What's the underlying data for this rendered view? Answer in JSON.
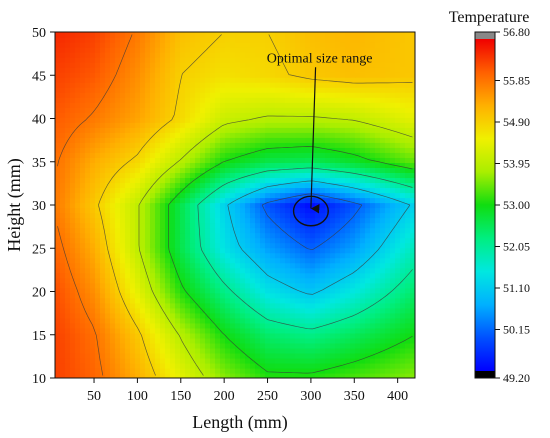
{
  "chart_data": {
    "type": "heatmap",
    "title": "",
    "xlabel": "Length (mm)",
    "ylabel": "Height (mm)",
    "xlim": [
      5,
      420
    ],
    "ylim": [
      10,
      50
    ],
    "x_ticks": [
      50,
      100,
      150,
      200,
      250,
      300,
      350,
      400
    ],
    "y_ticks": [
      10,
      15,
      20,
      25,
      30,
      35,
      40,
      45,
      50
    ],
    "colorbar": {
      "label": "Temperature",
      "min": 49.2,
      "max": 56.8,
      "ticks": [
        "56.80",
        "55.85",
        "54.90",
        "53.95",
        "53.00",
        "52.05",
        "51.10",
        "50.15",
        "49.20"
      ],
      "colors": [
        "#000000",
        "#0000ff",
        "#0050ff",
        "#00b0ff",
        "#00e8e0",
        "#00ee80",
        "#10dd10",
        "#aaee00",
        "#f0f000",
        "#ffb000",
        "#ff6000",
        "#f00000",
        "#888888"
      ]
    },
    "temperature_field": {
      "x": [
        5,
        50,
        100,
        150,
        200,
        250,
        300,
        350,
        420
      ],
      "y": [
        10,
        15,
        20,
        25,
        30,
        35,
        40,
        45,
        50
      ],
      "z": [
        [
          56.3,
          56.0,
          55.3,
          54.4,
          53.6,
          53.1,
          53.1,
          53.3,
          53.6
        ],
        [
          56.3,
          55.9,
          55.0,
          53.9,
          53.0,
          52.4,
          52.2,
          52.5,
          53.0
        ],
        [
          56.2,
          55.6,
          54.4,
          53.1,
          52.2,
          51.4,
          51.0,
          51.5,
          52.4
        ],
        [
          56.0,
          55.3,
          54.0,
          52.6,
          51.4,
          50.6,
          50.1,
          50.6,
          51.8
        ],
        [
          55.8,
          55.0,
          54.0,
          52.6,
          51.2,
          50.0,
          49.3,
          50.0,
          51.2
        ],
        [
          55.9,
          55.3,
          54.8,
          53.9,
          53.0,
          52.6,
          52.5,
          52.8,
          53.4
        ],
        [
          56.1,
          55.8,
          55.4,
          54.8,
          54.1,
          53.9,
          53.9,
          54.0,
          54.4
        ],
        [
          56.3,
          56.1,
          55.6,
          54.9,
          54.7,
          54.8,
          55.0,
          55.1,
          55.0
        ],
        [
          56.5,
          56.3,
          55.8,
          55.1,
          54.9,
          54.9,
          55.1,
          55.2,
          55.0
        ]
      ]
    },
    "annotation": {
      "text": "Optimal size range",
      "text_at": [
        310,
        46.5
      ],
      "arrow_to": [
        300,
        29.6
      ],
      "ellipse_center": [
        300,
        29.3
      ],
      "ellipse_radius": [
        20,
        1.7
      ]
    }
  }
}
